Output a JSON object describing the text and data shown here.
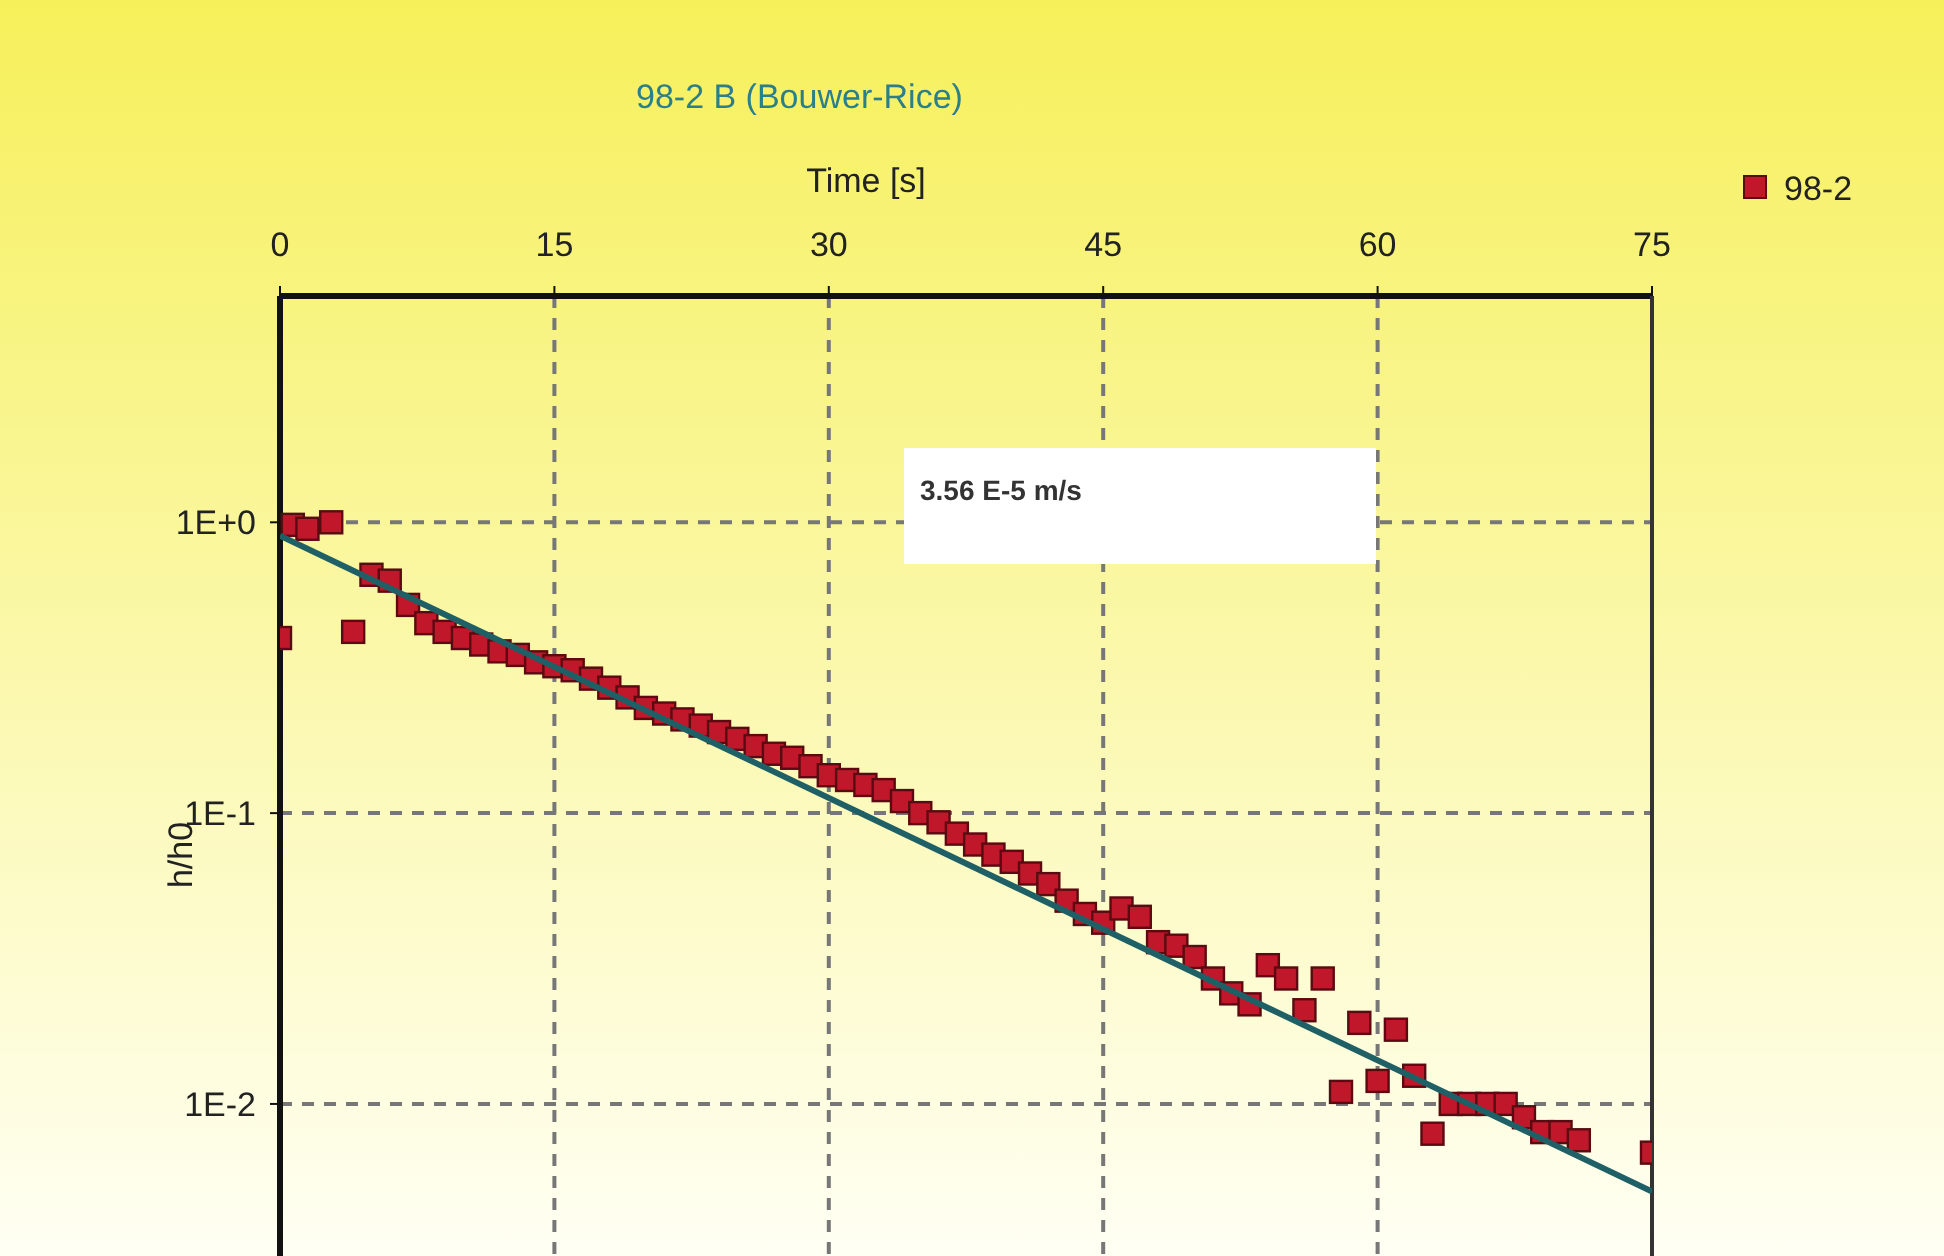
{
  "chart_data": {
    "type": "scatter",
    "title": "98-2 B (Bouwer-Rice)",
    "xlabel": "Time [s]",
    "ylabel": "h/h0",
    "x": [
      0,
      0.7,
      1.5,
      2.8,
      4,
      5,
      6,
      7,
      8,
      9,
      10,
      11,
      12,
      13,
      14,
      15,
      16,
      17,
      18,
      19,
      20,
      21,
      22,
      23,
      24,
      25,
      26,
      27,
      28,
      29,
      30,
      31,
      32,
      33,
      34,
      35,
      36,
      37,
      38,
      39,
      40,
      41,
      42,
      43,
      44,
      45,
      46,
      47,
      48,
      49,
      50,
      51,
      52,
      53,
      54,
      55,
      56,
      57,
      58,
      59,
      60,
      61,
      62,
      63,
      64,
      65,
      66,
      67,
      68,
      69,
      70,
      71,
      75
    ],
    "series": [
      {
        "name": "98-2",
        "color": "#c0182a",
        "marker": "square",
        "values": [
          0.4,
          0.98,
          0.95,
          1.0,
          0.42,
          0.66,
          0.63,
          0.52,
          0.45,
          0.42,
          0.4,
          0.38,
          0.36,
          0.35,
          0.33,
          0.32,
          0.31,
          0.29,
          0.27,
          0.25,
          0.23,
          0.22,
          0.21,
          0.2,
          0.19,
          0.18,
          0.17,
          0.16,
          0.155,
          0.145,
          0.135,
          0.13,
          0.125,
          0.12,
          0.11,
          0.1,
          0.093,
          0.085,
          0.078,
          0.072,
          0.068,
          0.062,
          0.057,
          0.05,
          0.045,
          0.042,
          0.047,
          0.044,
          0.036,
          0.035,
          0.032,
          0.027,
          0.024,
          0.022,
          0.03,
          0.027,
          0.021,
          0.027,
          0.011,
          0.019,
          0.012,
          0.018,
          0.0125,
          0.0079,
          0.01,
          0.01,
          0.01,
          0.01,
          0.009,
          0.008,
          0.008,
          0.0075,
          0.0068
        ]
      },
      {
        "type": "line",
        "color": "#1f5f66",
        "line_style": "solid",
        "x": [
          0,
          75
        ],
        "values": [
          0.9,
          0.005
        ]
      }
    ],
    "xlim": [
      0,
      75
    ],
    "xticks": [
      0,
      15,
      30,
      45,
      60,
      75
    ],
    "ylim": [
      0.003,
      6
    ],
    "log": true,
    "yticks": [
      {
        "value": 1,
        "label": "1E+0"
      },
      {
        "value": 0.1,
        "label": "1E-1"
      },
      {
        "value": 0.01,
        "label": "1E-2"
      }
    ],
    "grid": true,
    "legend": "top right",
    "annotations": [
      "3.56 E-5 m/s"
    ]
  }
}
